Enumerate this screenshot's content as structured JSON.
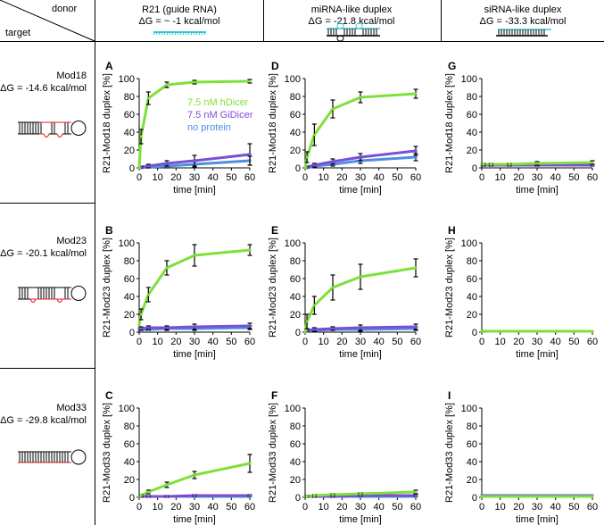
{
  "header": {
    "donor_label": "donor",
    "target_label": "target",
    "columns": [
      {
        "title": "R21 (guide RNA)",
        "dg": "ΔG = ~ -1 kcal/mol",
        "icon": "single-strand-guide-rna"
      },
      {
        "title": "miRNA-like duplex",
        "dg": "ΔG = -21.8 kcal/mol",
        "icon": "mirna-duplex-with-bulges"
      },
      {
        "title": "siRNA-like duplex",
        "dg": "ΔG = -33.3 kcal/mol",
        "icon": "sirna-perfect-duplex"
      }
    ]
  },
  "rows": [
    {
      "name": "Mod18",
      "dg": "ΔG = -14.6 kcal/mol",
      "icon": "hairpin-mod18"
    },
    {
      "name": "Mod23",
      "dg": "ΔG = -20.1 kcal/mol",
      "icon": "hairpin-mod23"
    },
    {
      "name": "Mod33",
      "dg": "ΔG = -29.8 kcal/mol",
      "icon": "hairpin-mod33"
    }
  ],
  "legend": [
    {
      "label": "7.5 nM hDicer",
      "color": "#7ee03a"
    },
    {
      "label": "7.5 nM GiDicer",
      "color": "#7a4fd8"
    },
    {
      "label": "no protein",
      "color": "#4a90e2"
    }
  ],
  "colors": {
    "hDicer": "#7ee03a",
    "GiDicer": "#7a4fd8",
    "noProtein": "#4a90e2",
    "rna_red": "#e02020",
    "rna_cyan": "#36c6d0"
  },
  "chart_data": [
    {
      "id": "A",
      "type": "line",
      "xlabel": "time [min]",
      "ylabel": "R21-Mod18 duplex [%]",
      "xlim": [
        0,
        60
      ],
      "ylim": [
        0,
        100
      ],
      "xticks": [
        0,
        10,
        20,
        30,
        40,
        50,
        60
      ],
      "yticks": [
        0,
        20,
        40,
        60,
        80,
        100
      ],
      "x": [
        0,
        1,
        5,
        15,
        30,
        60
      ],
      "series": [
        {
          "name": "7.5 nM hDicer",
          "values": [
            0,
            35,
            78,
            93,
            96,
            97
          ],
          "err": [
            0,
            8,
            7,
            3,
            2,
            2
          ]
        },
        {
          "name": "7.5 nM GiDicer",
          "values": [
            0,
            1,
            2,
            5,
            8,
            15
          ],
          "err": [
            0,
            1,
            2,
            3,
            6,
            12
          ]
        },
        {
          "name": "no protein",
          "values": [
            0,
            0,
            1,
            2,
            4,
            8
          ],
          "err": [
            0,
            1,
            1,
            2,
            3,
            5
          ]
        }
      ]
    },
    {
      "id": "D",
      "type": "line",
      "xlabel": "time [min]",
      "ylabel": "R21-Mod18 duplex [%]",
      "xlim": [
        0,
        60
      ],
      "ylim": [
        0,
        100
      ],
      "xticks": [
        0,
        10,
        20,
        30,
        40,
        50,
        60
      ],
      "yticks": [
        0,
        20,
        40,
        60,
        80,
        100
      ],
      "x": [
        0,
        1,
        5,
        15,
        30,
        60
      ],
      "series": [
        {
          "name": "7.5 nM hDicer",
          "values": [
            0,
            12,
            37,
            66,
            79,
            83
          ],
          "err": [
            0,
            6,
            12,
            10,
            6,
            5
          ]
        },
        {
          "name": "7.5 nM GiDicer",
          "values": [
            0,
            1,
            3,
            7,
            12,
            19
          ],
          "err": [
            0,
            1,
            2,
            3,
            4,
            5
          ]
        },
        {
          "name": "no protein",
          "values": [
            0,
            0,
            2,
            4,
            8,
            12
          ],
          "err": [
            0,
            1,
            1,
            2,
            3,
            4
          ]
        }
      ]
    },
    {
      "id": "G",
      "type": "line",
      "xlabel": "time [min]",
      "ylabel": "R21-Mod18 duplex [%]",
      "xlim": [
        0,
        60
      ],
      "ylim": [
        0,
        100
      ],
      "xticks": [
        0,
        10,
        20,
        30,
        40,
        50,
        60
      ],
      "yticks": [
        0,
        20,
        40,
        60,
        80,
        100
      ],
      "x": [
        0,
        1,
        5,
        15,
        30,
        60
      ],
      "series": [
        {
          "name": "7.5 nM hDicer",
          "values": [
            4,
            4,
            4,
            4,
            5,
            6
          ],
          "err": [
            0,
            1,
            1,
            1,
            2,
            2
          ]
        },
        {
          "name": "7.5 nM GiDicer",
          "values": [
            3,
            3,
            3,
            3,
            3,
            3
          ],
          "err": [
            0,
            1,
            1,
            1,
            1,
            1
          ]
        },
        {
          "name": "no protein",
          "values": [
            3,
            3,
            3,
            3,
            3,
            3
          ],
          "err": [
            0,
            1,
            1,
            1,
            1,
            1
          ]
        }
      ]
    },
    {
      "id": "B",
      "type": "line",
      "xlabel": "time [min]",
      "ylabel": "R21-Mod23 duplex [%]",
      "xlim": [
        0,
        60
      ],
      "ylim": [
        0,
        100
      ],
      "xticks": [
        0,
        10,
        20,
        30,
        40,
        50,
        60
      ],
      "yticks": [
        0,
        20,
        40,
        60,
        80,
        100
      ],
      "x": [
        0,
        1,
        5,
        15,
        30,
        60
      ],
      "series": [
        {
          "name": "7.5 nM hDicer",
          "values": [
            8,
            20,
            42,
            72,
            86,
            92
          ],
          "err": [
            0,
            6,
            8,
            8,
            12,
            6
          ]
        },
        {
          "name": "7.5 nM GiDicer",
          "values": [
            4,
            4,
            5,
            5,
            6,
            7
          ],
          "err": [
            0,
            2,
            2,
            2,
            3,
            3
          ]
        },
        {
          "name": "no protein",
          "values": [
            3,
            3,
            3,
            4,
            4,
            5
          ],
          "err": [
            0,
            1,
            1,
            2,
            2,
            2
          ]
        }
      ]
    },
    {
      "id": "E",
      "type": "line",
      "xlabel": "time [min]",
      "ylabel": "R21-Mod23 duplex [%]",
      "xlim": [
        0,
        60
      ],
      "ylim": [
        0,
        100
      ],
      "xticks": [
        0,
        10,
        20,
        30,
        40,
        50,
        60
      ],
      "yticks": [
        0,
        20,
        40,
        60,
        80,
        100
      ],
      "x": [
        0,
        1,
        5,
        15,
        30,
        60
      ],
      "series": [
        {
          "name": "7.5 nM hDicer",
          "values": [
            0,
            12,
            30,
            50,
            62,
            72
          ],
          "err": [
            0,
            8,
            10,
            14,
            14,
            10
          ]
        },
        {
          "name": "7.5 nM GiDicer",
          "values": [
            0,
            2,
            3,
            4,
            5,
            6
          ],
          "err": [
            0,
            1,
            2,
            2,
            3,
            3
          ]
        },
        {
          "name": "no protein",
          "values": [
            0,
            1,
            2,
            3,
            3,
            4
          ],
          "err": [
            0,
            1,
            1,
            1,
            2,
            2
          ]
        }
      ]
    },
    {
      "id": "H",
      "type": "line",
      "xlabel": "time [min]",
      "ylabel": "R21-Mod23 duplex [%]",
      "xlim": [
        0,
        60
      ],
      "ylim": [
        0,
        100
      ],
      "xticks": [
        0,
        10,
        20,
        30,
        40,
        50,
        60
      ],
      "yticks": [
        0,
        20,
        40,
        60,
        80,
        100
      ],
      "x": [
        0,
        1,
        5,
        15,
        30,
        60
      ],
      "series": [
        {
          "name": "7.5 nM hDicer",
          "values": [
            1,
            1,
            1,
            1,
            1,
            1
          ],
          "err": [
            0,
            0,
            0,
            0,
            0,
            0
          ]
        },
        {
          "name": "7.5 nM GiDicer",
          "values": [
            1,
            1,
            1,
            1,
            1,
            1
          ],
          "err": [
            0,
            1,
            0,
            0,
            0,
            0
          ]
        },
        {
          "name": "no protein",
          "values": [
            1,
            1,
            1,
            1,
            1,
            1
          ],
          "err": [
            0,
            0,
            0,
            0,
            0,
            0
          ]
        }
      ]
    },
    {
      "id": "C",
      "type": "line",
      "xlabel": "time [min]",
      "ylabel": "R21-Mod33 duplex [%]",
      "xlim": [
        0,
        60
      ],
      "ylim": [
        0,
        100
      ],
      "xticks": [
        0,
        10,
        20,
        30,
        40,
        50,
        60
      ],
      "yticks": [
        0,
        20,
        40,
        60,
        80,
        100
      ],
      "x": [
        0,
        1,
        5,
        15,
        30,
        60
      ],
      "series": [
        {
          "name": "7.5 nM hDicer",
          "values": [
            1,
            2,
            6,
            14,
            25,
            38
          ],
          "err": [
            0,
            1,
            2,
            3,
            4,
            10
          ]
        },
        {
          "name": "7.5 nM GiDicer",
          "values": [
            1,
            1,
            1,
            1,
            2,
            2
          ],
          "err": [
            0,
            1,
            1,
            1,
            1,
            1
          ]
        },
        {
          "name": "no protein",
          "values": [
            1,
            1,
            1,
            1,
            1,
            1
          ],
          "err": [
            0,
            0,
            0,
            0,
            0,
            0
          ]
        }
      ]
    },
    {
      "id": "F",
      "type": "line",
      "xlabel": "time [min]",
      "ylabel": "R21-Mod33 duplex [%]",
      "xlim": [
        0,
        60
      ],
      "ylim": [
        0,
        100
      ],
      "xticks": [
        0,
        10,
        20,
        30,
        40,
        50,
        60
      ],
      "yticks": [
        0,
        20,
        40,
        60,
        80,
        100
      ],
      "x": [
        0,
        1,
        5,
        15,
        30,
        60
      ],
      "series": [
        {
          "name": "7.5 nM hDicer",
          "values": [
            1,
            1,
            2,
            3,
            4,
            6
          ],
          "err": [
            0,
            1,
            1,
            1,
            1,
            2
          ]
        },
        {
          "name": "7.5 nM GiDicer",
          "values": [
            1,
            1,
            1,
            1,
            2,
            2
          ],
          "err": [
            0,
            1,
            1,
            1,
            1,
            1
          ]
        },
        {
          "name": "no protein",
          "values": [
            1,
            1,
            1,
            1,
            1,
            1
          ],
          "err": [
            0,
            0,
            0,
            0,
            0,
            0
          ]
        }
      ]
    },
    {
      "id": "I",
      "type": "line",
      "xlabel": "time [min]",
      "ylabel": "R21-Mod33 duplex [%]",
      "xlim": [
        0,
        60
      ],
      "ylim": [
        0,
        100
      ],
      "xticks": [
        0,
        10,
        20,
        30,
        40,
        50,
        60
      ],
      "yticks": [
        0,
        20,
        40,
        60,
        80,
        100
      ],
      "x": [
        0,
        1,
        5,
        15,
        30,
        60
      ],
      "series": [
        {
          "name": "7.5 nM hDicer",
          "values": [
            1,
            1,
            1,
            1,
            1,
            1
          ],
          "err": [
            0,
            0,
            0,
            0,
            0,
            0
          ]
        },
        {
          "name": "7.5 nM GiDicer",
          "values": [
            2,
            2,
            2,
            2,
            2,
            2
          ],
          "err": [
            0,
            0,
            0,
            0,
            0,
            0
          ]
        },
        {
          "name": "no protein",
          "values": [
            1,
            1,
            1,
            1,
            1,
            1
          ],
          "err": [
            0,
            0,
            0,
            0,
            0,
            0
          ]
        }
      ]
    }
  ]
}
